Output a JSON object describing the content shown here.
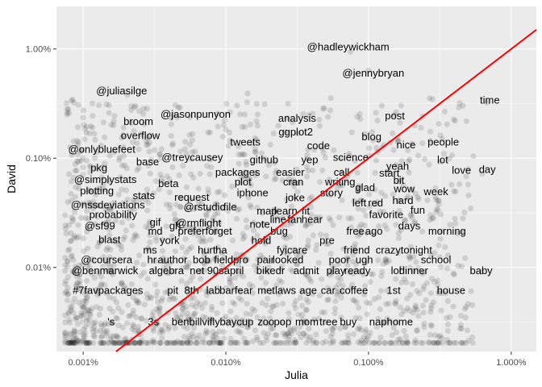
{
  "chart_data": {
    "type": "scatter",
    "xlabel": "Julia",
    "ylabel": "David",
    "x_scale": "log",
    "y_scale": "log",
    "xlim": [
      6.5e-06,
      0.015
    ],
    "ylim": [
      1.7e-05,
      0.0245
    ],
    "x_ticks": [
      {
        "value": 1e-05,
        "label": "0.001%"
      },
      {
        "value": 0.0001,
        "label": "0.010%"
      },
      {
        "value": 0.001,
        "label": "0.100%"
      },
      {
        "value": 0.01,
        "label": "1.000%"
      }
    ],
    "y_ticks": [
      {
        "value": 0.0001,
        "label": "0.01%"
      },
      {
        "value": 0.001,
        "label": "0.10%"
      },
      {
        "value": 0.01,
        "label": "1.00%"
      }
    ],
    "grid": true,
    "reference_line": {
      "slope": 1,
      "intercept": 0,
      "color": "#ff0000"
    },
    "point_color": "#000000",
    "point_alpha": 0.12,
    "word_labels": [
      {
        "text": "@hadleywickham",
        "x": 0.00072,
        "y": 0.0105
      },
      {
        "text": "@jennybryan",
        "x": 0.00108,
        "y": 0.00605
      },
      {
        "text": "@juliasilge",
        "x": 1.86e-05,
        "y": 0.00415
      },
      {
        "text": "@jasonpunyon",
        "x": 6.14e-05,
        "y": 0.00253
      },
      {
        "text": "broom",
        "x": 2.44e-05,
        "y": 0.00218
      },
      {
        "text": "analysis",
        "x": 0.000316,
        "y": 0.00232
      },
      {
        "text": "post",
        "x": 0.00153,
        "y": 0.00245
      },
      {
        "text": "time",
        "x": 0.00708,
        "y": 0.0034
      },
      {
        "text": "overflow",
        "x": 2.52e-05,
        "y": 0.00162
      },
      {
        "text": "ggplot2",
        "x": 0.000309,
        "y": 0.00174
      },
      {
        "text": "blog",
        "x": 0.00105,
        "y": 0.00158
      },
      {
        "text": "tweets",
        "x": 0.000137,
        "y": 0.00141
      },
      {
        "text": "code",
        "x": 0.000446,
        "y": 0.00131
      },
      {
        "text": "nice",
        "x": 0.00183,
        "y": 0.00133
      },
      {
        "text": "people",
        "x": 0.00334,
        "y": 0.00141
      },
      {
        "text": "@onlybluefeet",
        "x": 1.35e-05,
        "y": 0.00121
      },
      {
        "text": "@treycausey",
        "x": 5.82e-05,
        "y": 0.00102
      },
      {
        "text": "science",
        "x": 0.000751,
        "y": 0.00102
      },
      {
        "text": "lot",
        "x": 0.00331,
        "y": 0.00097
      },
      {
        "text": "base",
        "x": 2.83e-05,
        "y": 0.00093
      },
      {
        "text": "github",
        "x": 0.000185,
        "y": 0.00097
      },
      {
        "text": "yep",
        "x": 0.000387,
        "y": 0.00097
      },
      {
        "text": "yeah",
        "x": 0.0016,
        "y": 0.00085
      },
      {
        "text": "pkg",
        "x": 1.29e-05,
        "y": 0.00082
      },
      {
        "text": "love",
        "x": 0.00448,
        "y": 0.00078
      },
      {
        "text": "day",
        "x": 0.0068,
        "y": 0.00079
      },
      {
        "text": "packages",
        "x": 0.000121,
        "y": 0.000745
      },
      {
        "text": "easier",
        "x": 0.000283,
        "y": 0.000745
      },
      {
        "text": "call",
        "x": 0.000647,
        "y": 0.000745
      },
      {
        "text": "start",
        "x": 0.0014,
        "y": 0.00073
      },
      {
        "text": "@simplystats",
        "x": 1.43e-05,
        "y": 0.00064
      },
      {
        "text": "beta",
        "x": 3.96e-05,
        "y": 0.00059
      },
      {
        "text": "plot",
        "x": 0.000132,
        "y": 0.00061
      },
      {
        "text": "cran",
        "x": 0.000297,
        "y": 0.00061
      },
      {
        "text": "writing",
        "x": 0.000632,
        "y": 0.00061
      },
      {
        "text": "bit",
        "x": 0.00163,
        "y": 0.00063
      },
      {
        "text": "plotting",
        "x": 1.25e-05,
        "y": 0.000505
      },
      {
        "text": "glad",
        "x": 0.000947,
        "y": 0.00054
      },
      {
        "text": "wow",
        "x": 0.00178,
        "y": 0.000525
      },
      {
        "text": "week",
        "x": 0.00297,
        "y": 0.000495
      },
      {
        "text": "iphone",
        "x": 0.000154,
        "y": 0.000485
      },
      {
        "text": "story",
        "x": 0.000549,
        "y": 0.000485
      },
      {
        "text": "stats",
        "x": 2.66e-05,
        "y": 0.000455
      },
      {
        "text": "request",
        "x": 5.77e-05,
        "y": 0.00044
      },
      {
        "text": "joke",
        "x": 0.000306,
        "y": 0.000435
      },
      {
        "text": "hard",
        "x": 0.00174,
        "y": 0.00041
      },
      {
        "text": "@nssdeviations",
        "x": 1.49e-05,
        "y": 0.000375
      },
      {
        "text": "@rstudio",
        "x": 7.09e-05,
        "y": 0.00036
      },
      {
        "text": "file",
        "x": 0.000107,
        "y": 0.00036
      },
      {
        "text": "left",
        "x": 0.000863,
        "y": 0.00039
      },
      {
        "text": "red",
        "x": 0.00112,
        "y": 0.00039
      },
      {
        "text": "fun",
        "x": 0.00221,
        "y": 0.000335
      },
      {
        "text": "map",
        "x": 0.000194,
        "y": 0.00033
      },
      {
        "text": "learn",
        "x": 0.000263,
        "y": 0.00033
      },
      {
        "text": "fit",
        "x": 0.000362,
        "y": 0.00033
      },
      {
        "text": "probability",
        "x": 1.62e-05,
        "y": 0.000305
      },
      {
        "text": "favorite",
        "x": 0.00133,
        "y": 0.000305
      },
      {
        "text": "line",
        "x": 0.000232,
        "y": 0.000275
      },
      {
        "text": "fan",
        "x": 0.000304,
        "y": 0.000275
      },
      {
        "text": "hear",
        "x": 0.000402,
        "y": 0.000275
      },
      {
        "text": "note",
        "x": 0.000173,
        "y": 0.00025
      },
      {
        "text": "days",
        "x": 0.00193,
        "y": 0.00024
      },
      {
        "text": "@sf99",
        "x": 1.31e-05,
        "y": 0.00024
      },
      {
        "text": "gif",
        "x": 3.2e-05,
        "y": 0.00026
      },
      {
        "text": "gh",
        "x": 4.41e-05,
        "y": 0.00024
      },
      {
        "text": "@rmflight",
        "x": 6.45e-05,
        "y": 0.000255
      },
      {
        "text": "md",
        "x": 3.2e-05,
        "y": 0.000215
      },
      {
        "text": "prefer",
        "x": 5.75e-05,
        "y": 0.000215
      },
      {
        "text": "forget",
        "x": 8.9e-05,
        "y": 0.000215
      },
      {
        "text": "bug",
        "x": 0.000236,
        "y": 0.000215
      },
      {
        "text": "free",
        "x": 0.000808,
        "y": 0.000215
      },
      {
        "text": "ago",
        "x": 0.00109,
        "y": 0.000215
      },
      {
        "text": "morning",
        "x": 0.00355,
        "y": 0.000215
      },
      {
        "text": "blast",
        "x": 1.53e-05,
        "y": 0.00018
      },
      {
        "text": "york",
        "x": 4.04e-05,
        "y": 0.000178
      },
      {
        "text": "hold",
        "x": 0.000177,
        "y": 0.000178
      },
      {
        "text": "pre",
        "x": 0.000512,
        "y": 0.000178
      },
      {
        "text": "ms",
        "x": 2.94e-05,
        "y": 0.000145
      },
      {
        "text": "hurt",
        "x": 7.34e-05,
        "y": 0.000145
      },
      {
        "text": "ha",
        "x": 9.29e-05,
        "y": 0.000145
      },
      {
        "text": "fyicare",
        "x": 0.000291,
        "y": 0.000145
      },
      {
        "text": "friend",
        "x": 0.000827,
        "y": 0.000145
      },
      {
        "text": "crazytonight",
        "x": 0.00177,
        "y": 0.000145
      },
      {
        "text": "@coursera",
        "x": 1.46e-05,
        "y": 0.000118
      },
      {
        "text": "hr",
        "x": 3.03e-05,
        "y": 0.000118
      },
      {
        "text": "author",
        "x": 4.23e-05,
        "y": 0.000118
      },
      {
        "text": "bob",
        "x": 6.76e-05,
        "y": 0.000118
      },
      {
        "text": "fieldpro",
        "x": 0.000109,
        "y": 0.000118
      },
      {
        "text": "pair",
        "x": 0.00019,
        "y": 0.000118
      },
      {
        "text": "looked",
        "x": 0.000273,
        "y": 0.000118
      },
      {
        "text": "poor",
        "x": 0.000624,
        "y": 0.000118
      },
      {
        "text": "ugh",
        "x": 0.000933,
        "y": 0.000118
      },
      {
        "text": "school",
        "x": 0.00297,
        "y": 0.000118
      },
      {
        "text": "@benmarwick",
        "x": 1.42e-05,
        "y": 9.35e-05
      },
      {
        "text": "algebra",
        "x": 3.83e-05,
        "y": 9.35e-05
      },
      {
        "text": "net",
        "x": 6.28e-05,
        "y": 9.35e-05
      },
      {
        "text": "90s",
        "x": 8.46e-05,
        "y": 9.35e-05
      },
      {
        "text": "april",
        "x": 0.000114,
        "y": 9.35e-05
      },
      {
        "text": "bikedr",
        "x": 0.000206,
        "y": 9.35e-05
      },
      {
        "text": "admit",
        "x": 0.000366,
        "y": 9.35e-05
      },
      {
        "text": "play",
        "x": 0.000591,
        "y": 9.35e-05
      },
      {
        "text": "ready",
        "x": 0.000834,
        "y": 9.35e-05
      },
      {
        "text": "lol",
        "x": 0.00156,
        "y": 9.35e-05
      },
      {
        "text": "dinner",
        "x": 0.00207,
        "y": 9.35e-05
      },
      {
        "text": "baby",
        "x": 0.00616,
        "y": 9.35e-05
      },
      {
        "text": "#7favpackages",
        "x": 1.49e-05,
        "y": 6.17e-05
      },
      {
        "text": "pit",
        "x": 4.25e-05,
        "y": 6.17e-05
      },
      {
        "text": "8th",
        "x": 5.76e-05,
        "y": 6.17e-05
      },
      {
        "text": "lab",
        "x": 8.15e-05,
        "y": 6.17e-05
      },
      {
        "text": "barfear",
        "x": 0.000118,
        "y": 6.17e-05
      },
      {
        "text": "met",
        "x": 0.000192,
        "y": 6.17e-05
      },
      {
        "text": "laws",
        "x": 0.000262,
        "y": 6.17e-05
      },
      {
        "text": "age",
        "x": 0.000378,
        "y": 6.17e-05
      },
      {
        "text": "car",
        "x": 0.000521,
        "y": 6.17e-05
      },
      {
        "text": "coffee",
        "x": 0.000788,
        "y": 6.17e-05
      },
      {
        "text": "1st",
        "x": 0.0015,
        "y": 6.17e-05
      },
      {
        "text": "house",
        "x": 0.00379,
        "y": 6.17e-05
      },
      {
        "text": "'s",
        "x": 1.57e-05,
        "y": 3.19e-05
      },
      {
        "text": "3s",
        "x": 3.11e-05,
        "y": 3.19e-05
      },
      {
        "text": "benbillvifly",
        "x": 6.16e-05,
        "y": 3.19e-05
      },
      {
        "text": "baycup",
        "x": 0.000119,
        "y": 3.19e-05
      },
      {
        "text": "zoo",
        "x": 0.000191,
        "y": 3.19e-05
      },
      {
        "text": "pop",
        "x": 0.00025,
        "y": 3.19e-05
      },
      {
        "text": "mom",
        "x": 0.00037,
        "y": 3.19e-05
      },
      {
        "text": "tree",
        "x": 0.000524,
        "y": 3.19e-05
      },
      {
        "text": "buy",
        "x": 0.000721,
        "y": 3.19e-05
      },
      {
        "text": "naphome",
        "x": 0.00144,
        "y": 3.19e-05
      }
    ]
  }
}
